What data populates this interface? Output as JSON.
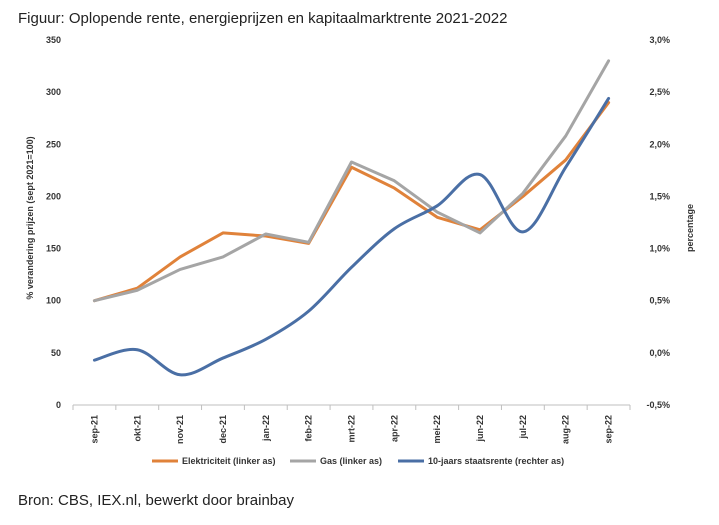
{
  "header": {
    "title": "Figuur: Oplopende rente, energieprijzen en kapitaalmarktrente 2021-2022"
  },
  "footer": {
    "source": "Bron: CBS, IEX.nl, bewerkt door brainbay"
  },
  "chart_data": {
    "type": "line",
    "title": "Figuur: Oplopende rente, energieprijzen en kapitaalmarktrente 2021-2022",
    "categories": [
      "sep-21",
      "okt-21",
      "nov-21",
      "dec-21",
      "jan-22",
      "feb-22",
      "mrt-22",
      "apr-22",
      "mei-22",
      "jun-22",
      "jul-22",
      "aug-22",
      "sep-22"
    ],
    "ylabel": "% verandering prijzen (sept 2021=100)",
    "ylabel_right": "percentage",
    "ylim": [
      0,
      350
    ],
    "yticks": [
      "0",
      "50",
      "100",
      "150",
      "200",
      "250",
      "300",
      "350"
    ],
    "ylim_right": [
      -0.5,
      3.0
    ],
    "yticks_right": [
      "-0,5%",
      "0,0%",
      "0,5%",
      "1,0%",
      "1,5%",
      "2,0%",
      "2,5%",
      "3,0%"
    ],
    "grid": false,
    "legend_position": "bottom",
    "series": [
      {
        "name": "Elektriciteit (linker as)",
        "axis": "left",
        "color": "#E0823A",
        "values": [
          100,
          112,
          142,
          165,
          162,
          155,
          228,
          208,
          180,
          168,
          200,
          235,
          290
        ]
      },
      {
        "name": "Gas (linker as)",
        "axis": "left",
        "color": "#A5A5A5",
        "values": [
          100,
          110,
          130,
          142,
          164,
          156,
          233,
          215,
          185,
          165,
          203,
          258,
          330
        ]
      },
      {
        "name": "10-jaars staatsrente (rechter as)",
        "axis": "right",
        "color": "#4A6FA5",
        "smooth": true,
        "values": [
          -0.07,
          0.03,
          -0.21,
          -0.05,
          0.13,
          0.4,
          0.82,
          1.19,
          1.41,
          1.71,
          1.16,
          1.78,
          2.44
        ]
      }
    ]
  }
}
